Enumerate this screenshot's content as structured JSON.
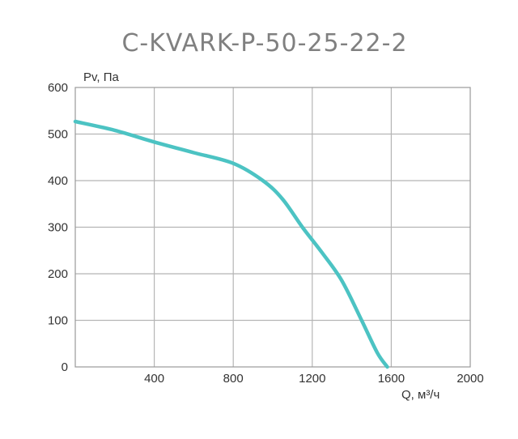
{
  "chart_data": {
    "type": "line",
    "title": "C-KVARK-P-50-25-22-2",
    "xlabel": "Q, м³/ч",
    "ylabel": "Pv, Па",
    "xlim": [
      0,
      2000
    ],
    "ylim": [
      0,
      600
    ],
    "x_ticks": [
      "400",
      "800",
      "1200",
      "1600",
      "2000"
    ],
    "y_ticks": [
      "0",
      "100",
      "200",
      "300",
      "400",
      "500",
      "600"
    ],
    "grid": true,
    "series": [
      {
        "color": "#4cc3c3",
        "x": [
          0,
          200,
          400,
          600,
          800,
          950,
          1050,
          1150,
          1250,
          1350,
          1450,
          1530,
          1580
        ],
        "y": [
          527,
          508,
          483,
          460,
          437,
          400,
          360,
          300,
          245,
          185,
          100,
          30,
          0
        ]
      }
    ]
  }
}
